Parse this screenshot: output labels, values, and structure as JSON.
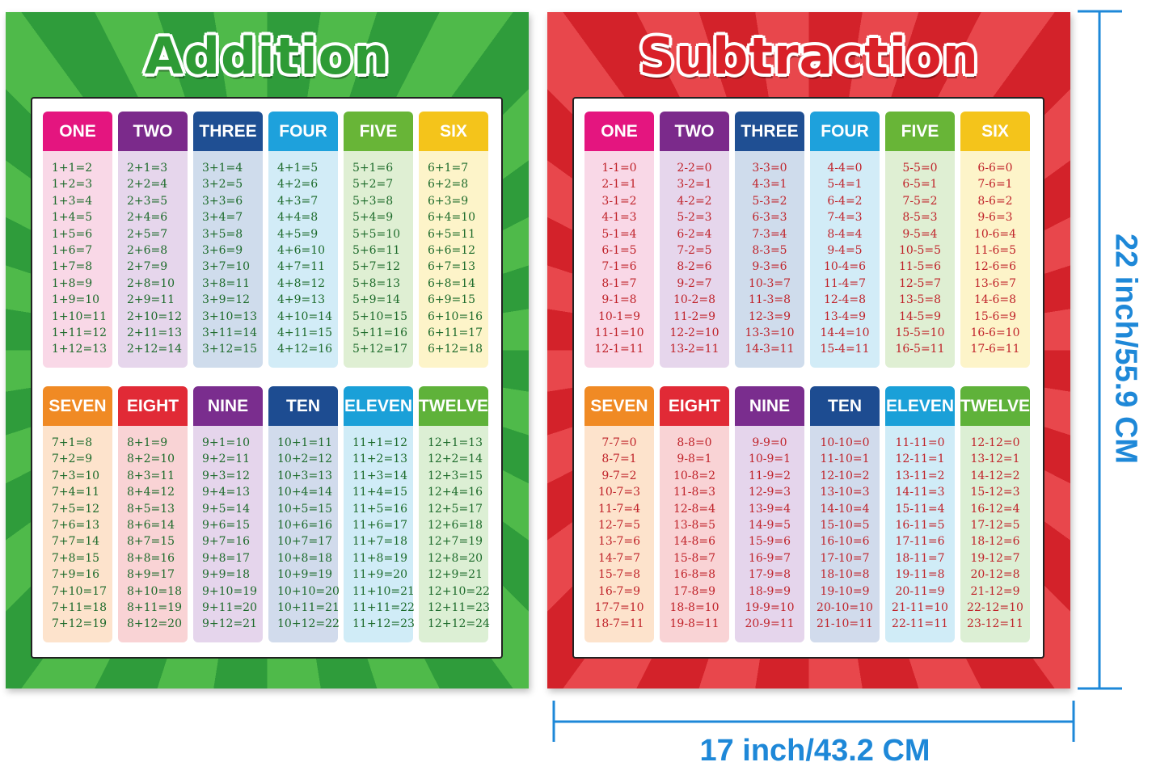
{
  "posters": [
    {
      "title": "Addition",
      "columns": [
        {
          "header": "ONE",
          "equations": [
            "1+1=2",
            "1+2=3",
            "1+3=4",
            "1+4=5",
            "1+5=6",
            "1+6=7",
            "1+7=8",
            "1+8=9",
            "1+9=10",
            "1+10=11",
            "1+11=12",
            "1+12=13"
          ]
        },
        {
          "header": "TWO",
          "equations": [
            "2+1=3",
            "2+2=4",
            "2+3=5",
            "2+4=6",
            "2+5=7",
            "2+6=8",
            "2+7=9",
            "2+8=10",
            "2+9=11",
            "2+10=12",
            "2+11=13",
            "2+12=14"
          ]
        },
        {
          "header": "THREE",
          "equations": [
            "3+1=4",
            "3+2=5",
            "3+3=6",
            "3+4=7",
            "3+5=8",
            "3+6=9",
            "3+7=10",
            "3+8=11",
            "3+9=12",
            "3+10=13",
            "3+11=14",
            "3+12=15"
          ]
        },
        {
          "header": "FOUR",
          "equations": [
            "4+1=5",
            "4+2=6",
            "4+3=7",
            "4+4=8",
            "4+5=9",
            "4+6=10",
            "4+7=11",
            "4+8=12",
            "4+9=13",
            "4+10=14",
            "4+11=15",
            "4+12=16"
          ]
        },
        {
          "header": "FIVE",
          "equations": [
            "5+1=6",
            "5+2=7",
            "5+3=8",
            "5+4=9",
            "5+5=10",
            "5+6=11",
            "5+7=12",
            "5+8=13",
            "5+9=14",
            "5+10=15",
            "5+11=16",
            "5+12=17"
          ]
        },
        {
          "header": "SIX",
          "equations": [
            "6+1=7",
            "6+2=8",
            "6+3=9",
            "6+4=10",
            "6+5=11",
            "6+6=12",
            "6+7=13",
            "6+8=14",
            "6+9=15",
            "6+10=16",
            "6+11=17",
            "6+12=18"
          ]
        },
        {
          "header": "SEVEN",
          "equations": [
            "7+1=8",
            "7+2=9",
            "7+3=10",
            "7+4=11",
            "7+5=12",
            "7+6=13",
            "7+7=14",
            "7+8=15",
            "7+9=16",
            "7+10=17",
            "7+11=18",
            "7+12=19"
          ]
        },
        {
          "header": "EIGHT",
          "equations": [
            "8+1=9",
            "8+2=10",
            "8+3=11",
            "8+4=12",
            "8+5=13",
            "8+6=14",
            "8+7=15",
            "8+8=16",
            "8+9=17",
            "8+10=18",
            "8+11=19",
            "8+12=20"
          ]
        },
        {
          "header": "NINE",
          "equations": [
            "9+1=10",
            "9+2=11",
            "9+3=12",
            "9+4=13",
            "9+5=14",
            "9+6=15",
            "9+7=16",
            "9+8=17",
            "9+9=18",
            "9+10=19",
            "9+11=20",
            "9+12=21"
          ]
        },
        {
          "header": "TEN",
          "equations": [
            "10+1=11",
            "10+2=12",
            "10+3=13",
            "10+4=14",
            "10+5=15",
            "10+6=16",
            "10+7=17",
            "10+8=18",
            "10+9=19",
            "10+10=20",
            "10+11=21",
            "10+12=22"
          ]
        },
        {
          "header": "ELEVEN",
          "equations": [
            "11+1=12",
            "11+2=13",
            "11+3=14",
            "11+4=15",
            "11+5=16",
            "11+6=17",
            "11+7=18",
            "11+8=19",
            "11+9=20",
            "11+10=21",
            "11+11=22",
            "11+12=23"
          ]
        },
        {
          "header": "TWELVE",
          "equations": [
            "12+1=13",
            "12+2=14",
            "12+3=15",
            "12+4=16",
            "12+5=17",
            "12+6=18",
            "12+7=19",
            "12+8=20",
            "12+9=21",
            "12+10=22",
            "12+11=23",
            "12+12=24"
          ]
        }
      ]
    },
    {
      "title": "Subtraction",
      "columns": [
        {
          "header": "ONE",
          "equations": [
            "1-1=0",
            "2-1=1",
            "3-1=2",
            "4-1=3",
            "5-1=4",
            "6-1=5",
            "7-1=6",
            "8-1=7",
            "9-1=8",
            "10-1=9",
            "11-1=10",
            "12-1=11"
          ]
        },
        {
          "header": "TWO",
          "equations": [
            "2-2=0",
            "3-2=1",
            "4-2=2",
            "5-2=3",
            "6-2=4",
            "7-2=5",
            "8-2=6",
            "9-2=7",
            "10-2=8",
            "11-2=9",
            "12-2=10",
            "13-2=11"
          ]
        },
        {
          "header": "THREE",
          "equations": [
            "3-3=0",
            "4-3=1",
            "5-3=2",
            "6-3=3",
            "7-3=4",
            "8-3=5",
            "9-3=6",
            "10-3=7",
            "11-3=8",
            "12-3=9",
            "13-3=10",
            "14-3=11"
          ]
        },
        {
          "header": "FOUR",
          "equations": [
            "4-4=0",
            "5-4=1",
            "6-4=2",
            "7-4=3",
            "8-4=4",
            "9-4=5",
            "10-4=6",
            "11-4=7",
            "12-4=8",
            "13-4=9",
            "14-4=10",
            "15-4=11"
          ]
        },
        {
          "header": "FIVE",
          "equations": [
            "5-5=0",
            "6-5=1",
            "7-5=2",
            "8-5=3",
            "9-5=4",
            "10-5=5",
            "11-5=6",
            "12-5=7",
            "13-5=8",
            "14-5=9",
            "15-5=10",
            "16-5=11"
          ]
        },
        {
          "header": "SIX",
          "equations": [
            "6-6=0",
            "7-6=1",
            "8-6=2",
            "9-6=3",
            "10-6=4",
            "11-6=5",
            "12-6=6",
            "13-6=7",
            "14-6=8",
            "15-6=9",
            "16-6=10",
            "17-6=11"
          ]
        },
        {
          "header": "SEVEN",
          "equations": [
            "7-7=0",
            "8-7=1",
            "9-7=2",
            "10-7=3",
            "11-7=4",
            "12-7=5",
            "13-7=6",
            "14-7=7",
            "15-7=8",
            "16-7=9",
            "17-7=10",
            "18-7=11"
          ]
        },
        {
          "header": "EIGHT",
          "equations": [
            "8-8=0",
            "9-8=1",
            "10-8=2",
            "11-8=3",
            "12-8=4",
            "13-8=5",
            "14-8=6",
            "15-8=7",
            "16-8=8",
            "17-8=9",
            "18-8=10",
            "19-8=11"
          ]
        },
        {
          "header": "NINE",
          "equations": [
            "9-9=0",
            "10-9=1",
            "11-9=2",
            "12-9=3",
            "13-9=4",
            "14-9=5",
            "15-9=6",
            "16-9=7",
            "17-9=8",
            "18-9=9",
            "19-9=10",
            "20-9=11"
          ]
        },
        {
          "header": "TEN",
          "equations": [
            "10-10=0",
            "11-10=1",
            "12-10=2",
            "13-10=3",
            "14-10=4",
            "15-10=5",
            "16-10=6",
            "17-10=7",
            "18-10=8",
            "19-10=9",
            "20-10=10",
            "21-10=11"
          ]
        },
        {
          "header": "ELEVEN",
          "equations": [
            "11-11=0",
            "12-11=1",
            "13-11=2",
            "14-11=3",
            "15-11=4",
            "16-11=5",
            "17-11=6",
            "18-11=7",
            "19-11=8",
            "20-11=9",
            "21-11=10",
            "22-11=11"
          ]
        },
        {
          "header": "TWELVE",
          "equations": [
            "12-12=0",
            "13-12=1",
            "14-12=2",
            "15-12=3",
            "16-12=4",
            "17-12=5",
            "18-12=6",
            "19-12=7",
            "20-12=8",
            "21-12=9",
            "22-12=10",
            "23-12=11"
          ]
        }
      ]
    }
  ],
  "dimensions": {
    "height": "22 inch/55.9 CM",
    "width": "17 inch/43.2 CM"
  }
}
